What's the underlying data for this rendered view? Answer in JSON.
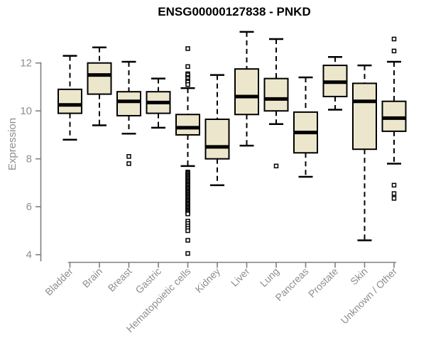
{
  "chart_data": {
    "type": "boxplot",
    "title": "ENSG00000127838 - PNKD",
    "ylabel": "Expression",
    "xlabel": "",
    "yticks": [
      4,
      6,
      8,
      10,
      12
    ],
    "ylim": [
      3.9,
      13.5
    ],
    "grid": false,
    "legend": false,
    "categories": [
      "Bladder",
      "Brain",
      "Breast",
      "Gastric",
      "Hematopoietic cells",
      "Kidney",
      "Liver",
      "Lung",
      "Pancreas",
      "Prostate",
      "Skin",
      "Unknown / Other"
    ],
    "boxes": [
      {
        "category": "Bladder",
        "whisker_low": 8.8,
        "q1": 9.9,
        "median": 10.25,
        "q3": 10.9,
        "whisker_high": 12.3,
        "outliers": []
      },
      {
        "category": "Brain",
        "whisker_low": 9.4,
        "q1": 10.7,
        "median": 11.5,
        "q3": 12.0,
        "whisker_high": 12.65,
        "outliers": []
      },
      {
        "category": "Breast",
        "whisker_low": 9.05,
        "q1": 9.8,
        "median": 10.4,
        "q3": 10.8,
        "whisker_high": 12.05,
        "outliers": [
          8.1,
          7.8
        ]
      },
      {
        "category": "Gastric",
        "whisker_low": 9.3,
        "q1": 9.9,
        "median": 10.35,
        "q3": 10.8,
        "whisker_high": 11.35,
        "outliers": []
      },
      {
        "category": "Hematopoietic cells",
        "whisker_low": 7.7,
        "q1": 9.0,
        "median": 9.3,
        "q3": 9.85,
        "whisker_high": 10.95,
        "outliers": [
          12.6,
          11.85,
          11.55,
          11.5,
          11.4,
          11.35,
          11.25,
          11.2,
          11.1,
          7.45,
          7.4,
          7.35,
          7.3,
          7.25,
          7.2,
          7.15,
          7.1,
          7.05,
          7.0,
          6.95,
          6.9,
          6.85,
          6.8,
          6.75,
          6.7,
          6.65,
          6.6,
          6.55,
          6.5,
          6.45,
          6.4,
          6.35,
          6.3,
          6.25,
          6.2,
          6.15,
          6.1,
          6.05,
          6.0,
          5.95,
          5.9,
          5.85,
          5.8,
          5.75,
          5.7,
          5.4,
          5.3,
          5.2,
          5.1,
          5.0,
          4.6,
          4.05
        ]
      },
      {
        "category": "Kidney",
        "whisker_low": 6.9,
        "q1": 8.0,
        "median": 8.5,
        "q3": 9.65,
        "whisker_high": 11.5,
        "outliers": []
      },
      {
        "category": "Liver",
        "whisker_low": 8.55,
        "q1": 9.85,
        "median": 10.6,
        "q3": 11.75,
        "whisker_high": 13.3,
        "outliers": []
      },
      {
        "category": "Lung",
        "whisker_low": 9.45,
        "q1": 10.0,
        "median": 10.5,
        "q3": 11.35,
        "whisker_high": 13.0,
        "outliers": [
          7.7
        ]
      },
      {
        "category": "Pancreas",
        "whisker_low": 7.25,
        "q1": 8.25,
        "median": 9.1,
        "q3": 9.95,
        "whisker_high": 11.4,
        "outliers": []
      },
      {
        "category": "Prostate",
        "whisker_low": 10.05,
        "q1": 10.6,
        "median": 11.2,
        "q3": 11.9,
        "whisker_high": 12.25,
        "outliers": []
      },
      {
        "category": "Skin",
        "whisker_low": 4.6,
        "q1": 8.4,
        "median": 10.4,
        "q3": 11.15,
        "whisker_high": 11.9,
        "outliers": []
      },
      {
        "category": "Unknown / Other",
        "whisker_low": 7.8,
        "q1": 9.15,
        "median": 9.7,
        "q3": 10.4,
        "whisker_high": 12.05,
        "outliers": [
          13.0,
          12.5,
          6.9,
          6.55,
          6.35
        ]
      }
    ],
    "colors": {
      "box_fill": "#ECE7CC",
      "box_border": "#000000",
      "median": "#000000",
      "whisker": "#000000",
      "outlier_stroke": "#000000",
      "outlier_fill": "#FFFFFF",
      "axis": "#7F7F7F",
      "axis_label": "#8E8E8E",
      "title": "#000000",
      "background": "#FFFFFF"
    }
  }
}
